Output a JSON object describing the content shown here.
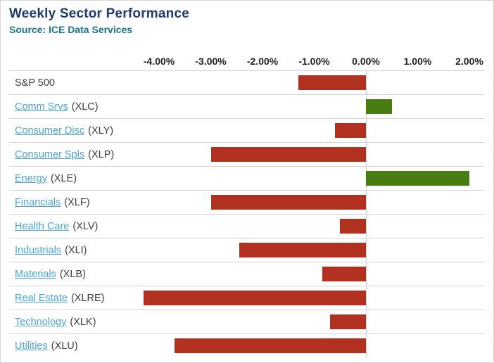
{
  "header": {
    "title": "Weekly Sector Performance",
    "source": "Source: ICE Data Services"
  },
  "chart_data": {
    "type": "bar",
    "orientation": "horizontal",
    "title": "Weekly Sector Performance",
    "xlabel": "",
    "ylabel": "",
    "categories": [
      "S&P 500",
      "Comm Srvs",
      "Consumer Disc",
      "Consumer Spls",
      "Energy",
      "Financials",
      "Health Care",
      "Industrials",
      "Materials",
      "Real Estate",
      "Technology",
      "Utilities"
    ],
    "tickers": [
      "",
      "(XLC)",
      "(XLY)",
      "(XLP)",
      "(XLE)",
      "(XLF)",
      "(XLV)",
      "(XLI)",
      "(XLB)",
      "(XLRE)",
      "(XLK)",
      "(XLU)"
    ],
    "category_is_link": [
      false,
      true,
      true,
      true,
      true,
      true,
      true,
      true,
      true,
      true,
      true,
      true
    ],
    "values": [
      -1.3,
      0.5,
      -0.6,
      -3.0,
      2.0,
      -3.0,
      -0.5,
      -2.45,
      -0.85,
      -4.3,
      -0.7,
      -3.7
    ],
    "value_unit": "%",
    "xtick_labels": [
      "-4.00%",
      "-3.00%",
      "-2.00%",
      "-1.00%",
      "0.00%",
      "1.00%",
      "2.00%"
    ],
    "xtick_values": [
      -4,
      -3,
      -2,
      -1,
      0,
      1,
      2
    ],
    "xlim": [
      -6.9,
      2.3
    ],
    "grid": true,
    "legend": "none",
    "colors": {
      "negative_bar": "#b13020",
      "positive_bar": "#4a7d11",
      "gridline": "#d5d5d5",
      "zero_line": "#c8c8c8",
      "title": "#1e3a6d",
      "source": "#1b7384",
      "link": "#4fa3c9",
      "text": "#3d3d3d"
    }
  }
}
